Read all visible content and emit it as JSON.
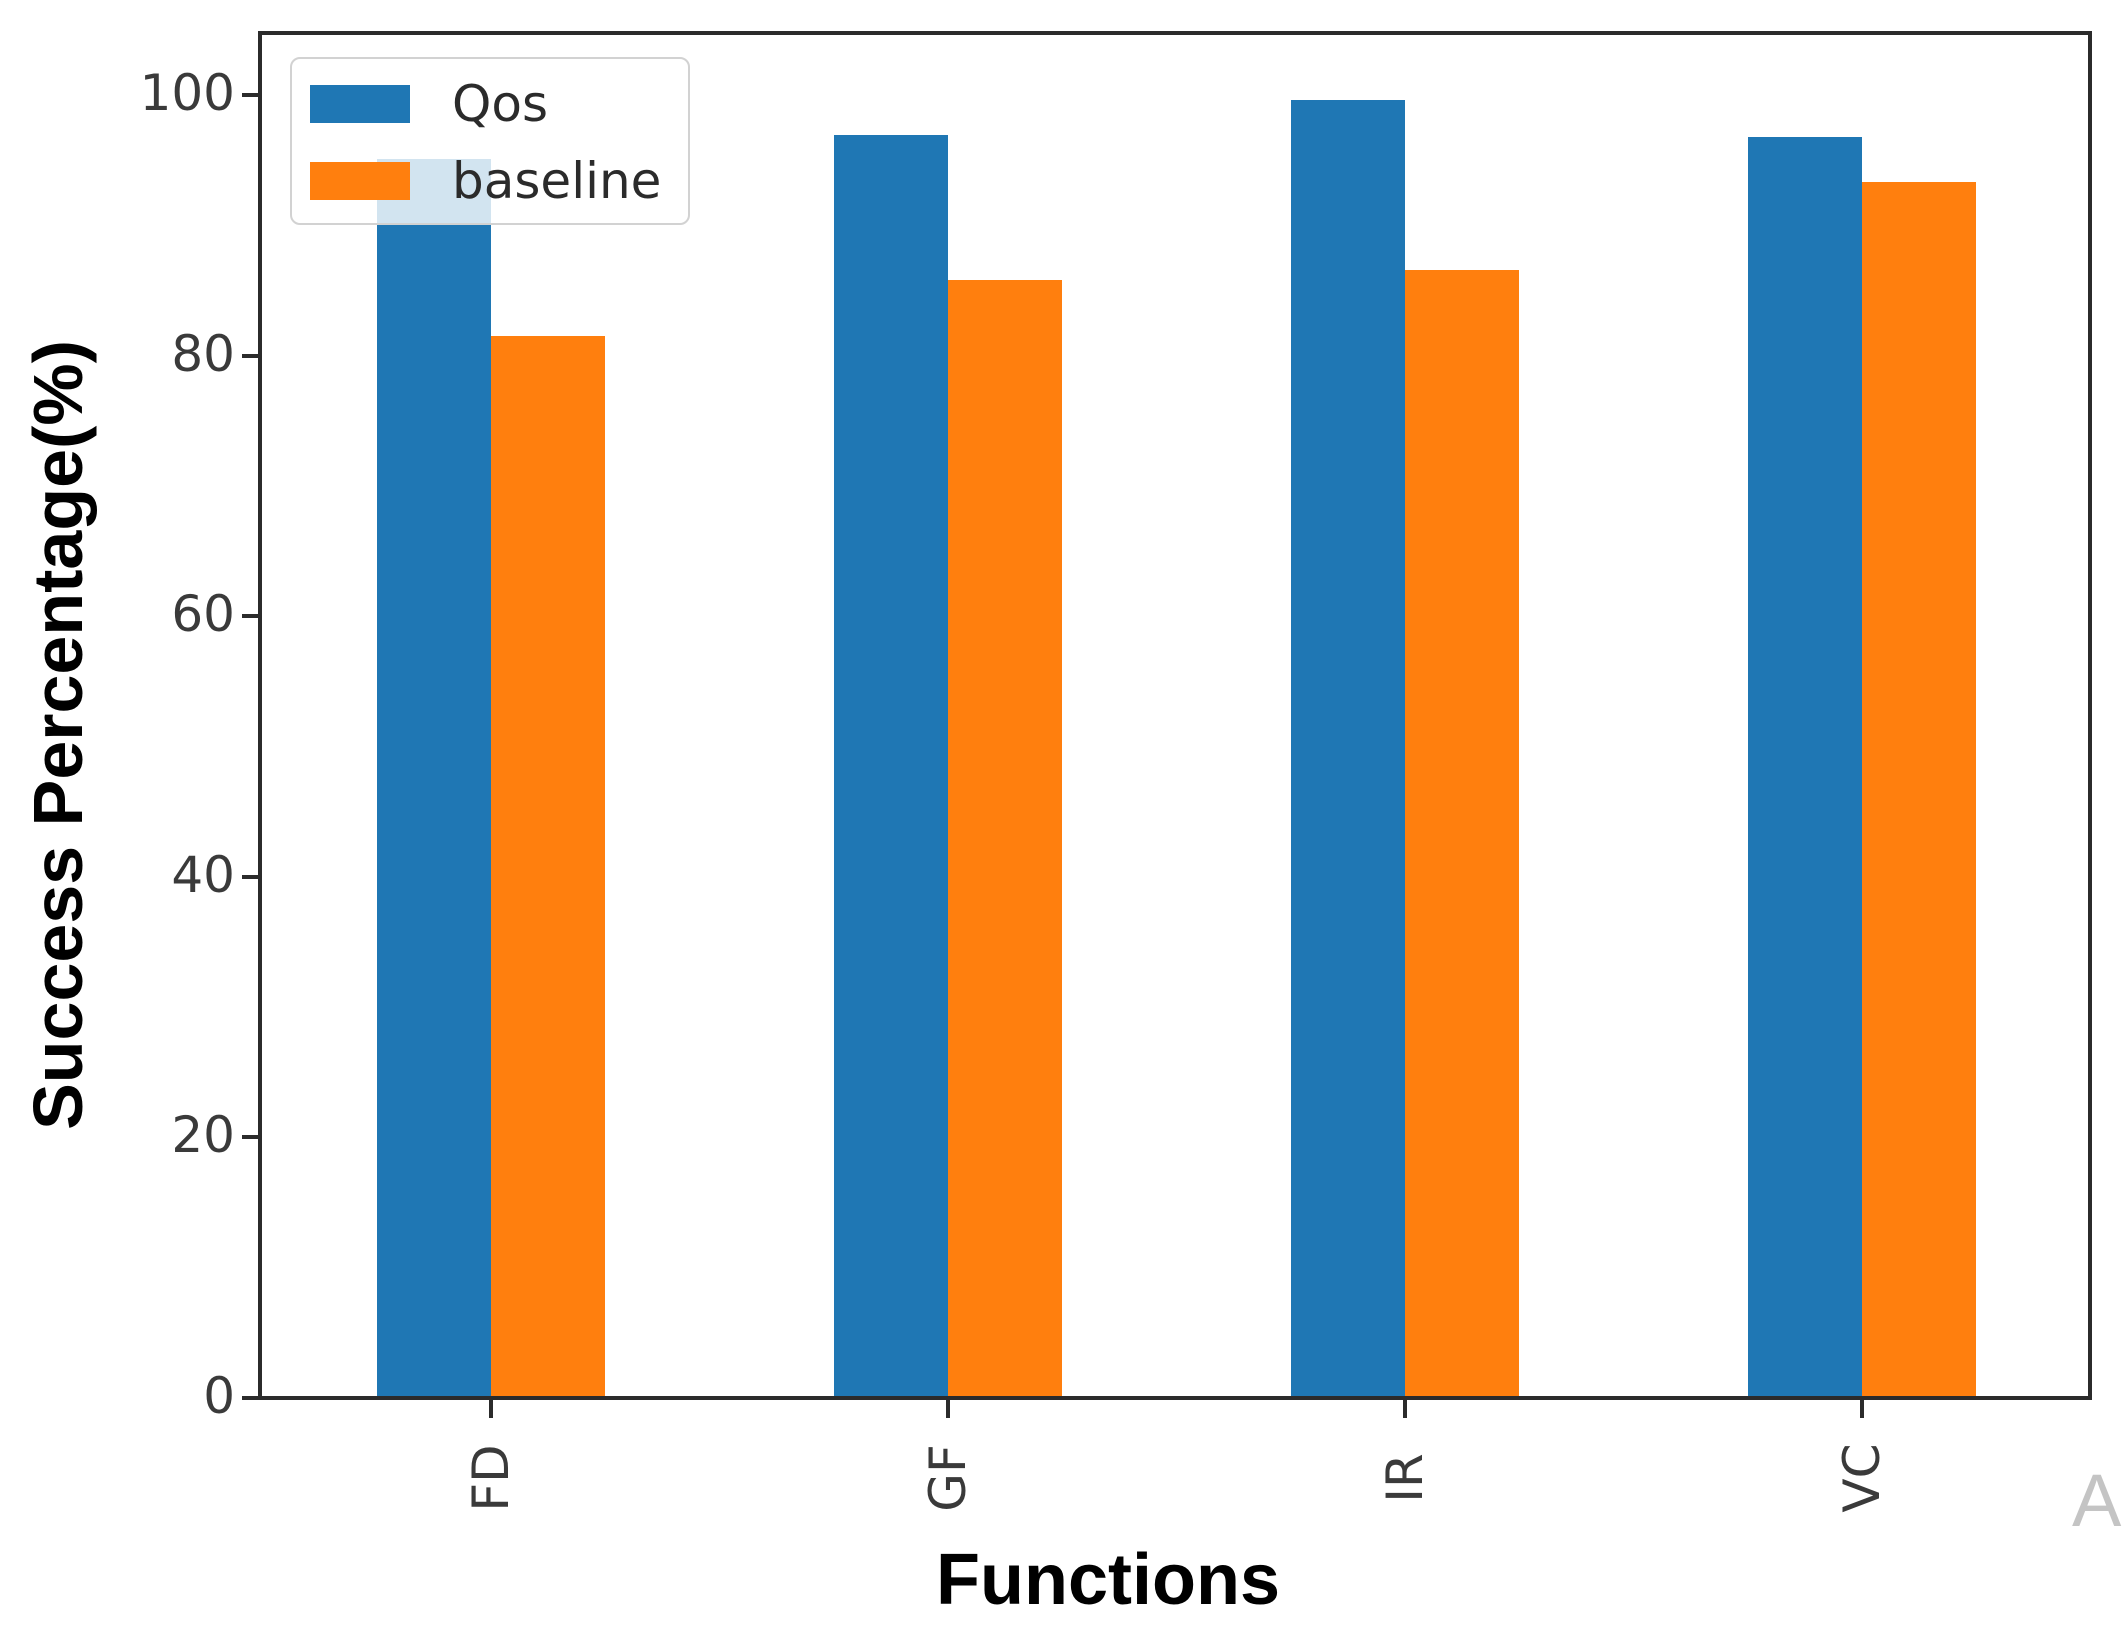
{
  "chart_data": {
    "type": "bar",
    "title": "",
    "xlabel": "Functions",
    "ylabel": "Success Percentage(%)",
    "categories": [
      "FD",
      "GF",
      "IR",
      "VC"
    ],
    "series": [
      {
        "name": "Qos",
        "color": "#1f77b4",
        "values": [
          95.1,
          96.9,
          99.6,
          96.8
        ]
      },
      {
        "name": "baseline",
        "color": "#ff7f0e",
        "values": [
          81.5,
          85.8,
          86.6,
          93.3
        ]
      }
    ],
    "yticks": [
      0,
      20,
      40,
      60,
      80,
      100
    ],
    "ylim": [
      0,
      104.8
    ],
    "grid": false,
    "legend_position": "upper left",
    "legend_labels": [
      "Qos",
      "baseline"
    ],
    "tick_label_rotation": "vertical"
  },
  "decorations": {
    "watermark": "A"
  }
}
